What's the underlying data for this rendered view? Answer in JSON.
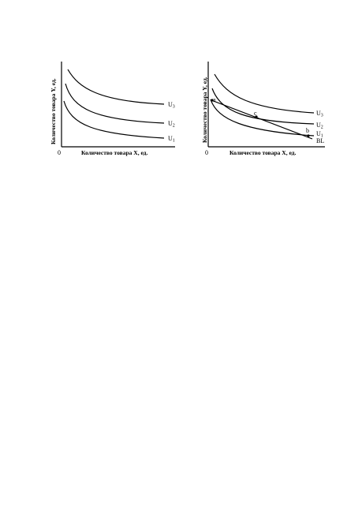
{
  "figure_left": {
    "y_axis_label": "Количество товара Y, ед.",
    "x_axis_label": "Количество товара X, ед.",
    "origin_label": "0",
    "curves": [
      {
        "label": "U3"
      },
      {
        "label": "U2"
      },
      {
        "label": "U1"
      }
    ]
  },
  "figure_right": {
    "y_axis_label": "Количество товара Y, ед.",
    "x_axis_label": "Количество товара X, ед.",
    "origin_label": "0",
    "curves": [
      {
        "label": "U3"
      },
      {
        "label": "U2"
      },
      {
        "label": "U1"
      }
    ],
    "budget_line_label": "BL",
    "points": [
      {
        "label": "a"
      },
      {
        "label": "b"
      },
      {
        "label": "c"
      }
    ]
  }
}
